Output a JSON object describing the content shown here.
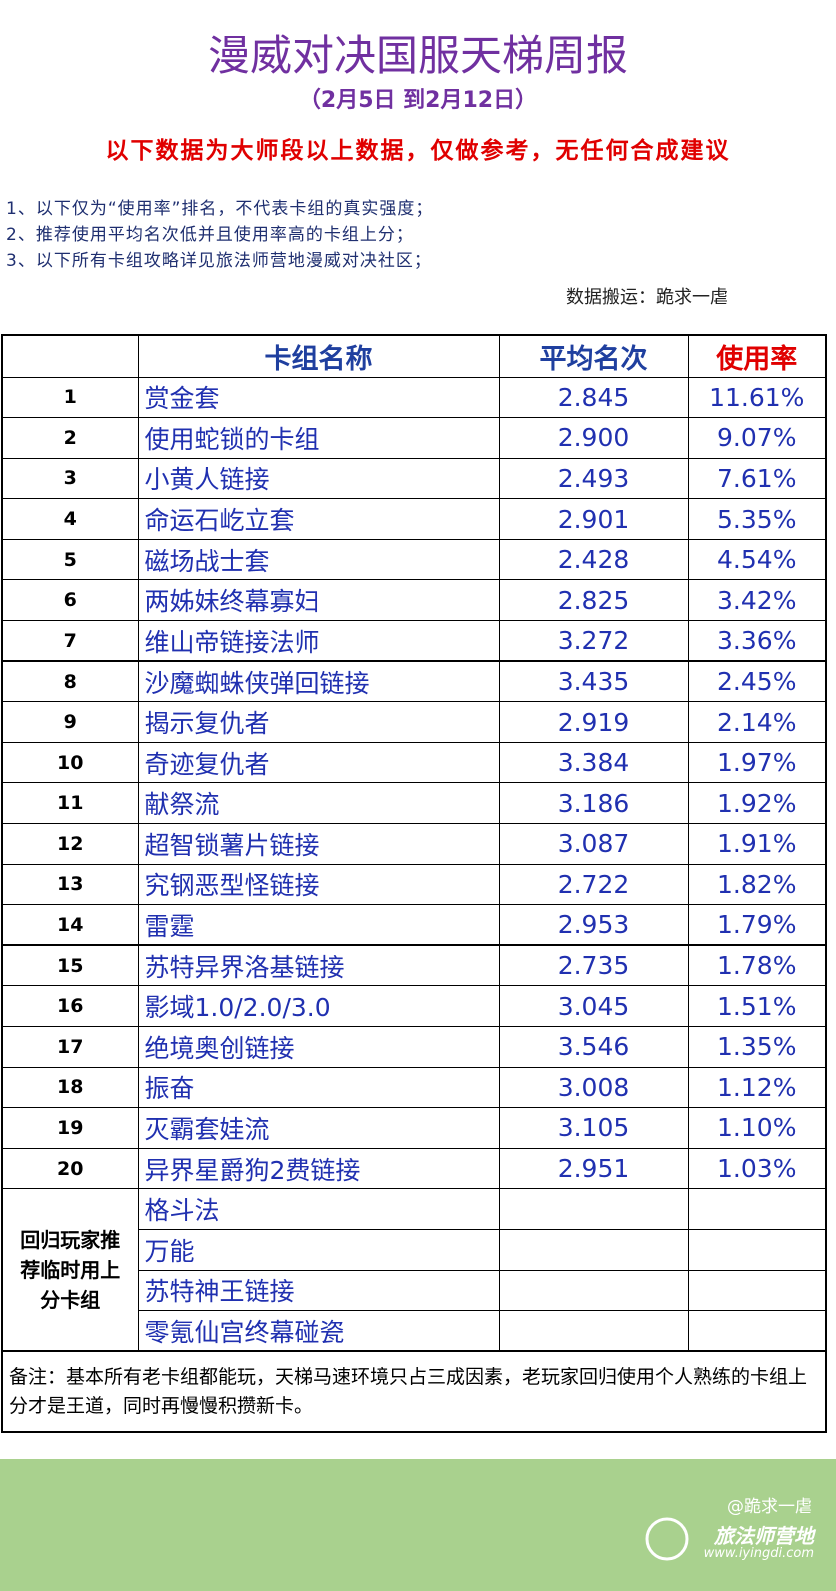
{
  "header": {
    "title": "漫威对决国服天梯周报",
    "subtitle": "（2月5日 到2月12日）",
    "disclaimer": "以下数据为大师段以上数据，仅做参考，无任何合成建议",
    "notes": [
      "1、以下仅为“使用率”排名，不代表卡组的真实强度；",
      "2、推荐使用平均名次低并且使用率高的卡组上分；",
      "3、以下所有卡组攻略详见旅法师营地漫威对决社区；"
    ],
    "source": "数据搬运：跪求一虐"
  },
  "table": {
    "columns": [
      "卡组名称",
      "平均名次",
      "使用率"
    ],
    "rows": [
      [
        "1",
        "赏金套",
        "2.845",
        "11.61%"
      ],
      [
        "2",
        "使用蛇锁的卡组",
        "2.900",
        "9.07%"
      ],
      [
        "3",
        "小黄人链接",
        "2.493",
        "7.61%"
      ],
      [
        "4",
        "命运石屹立套",
        "2.901",
        "5.35%"
      ],
      [
        "5",
        "磁场战士套",
        "2.428",
        "4.54%"
      ],
      [
        "6",
        "两姊妹终幕寡妇",
        "2.825",
        "3.42%"
      ],
      [
        "7",
        "维山帝链接法师",
        "3.272",
        "3.36%"
      ],
      [
        "8",
        "沙魔蜘蛛侠弹回链接",
        "3.435",
        "2.45%"
      ],
      [
        "9",
        "揭示复仇者",
        "2.919",
        "2.14%"
      ],
      [
        "10",
        "奇迹复仇者",
        "3.384",
        "1.97%"
      ],
      [
        "11",
        "献祭流",
        "3.186",
        "1.92%"
      ],
      [
        "12",
        "超智锁薯片链接",
        "3.087",
        "1.91%"
      ],
      [
        "13",
        "究钢恶型怪链接",
        "2.722",
        "1.82%"
      ],
      [
        "14",
        "雷霆",
        "2.953",
        "1.79%"
      ],
      [
        "15",
        "苏特异界洛基链接",
        "2.735",
        "1.78%"
      ],
      [
        "16",
        "影域1.0/2.0/3.0",
        "3.045",
        "1.51%"
      ],
      [
        "17",
        "绝境奥创链接",
        "3.546",
        "1.35%"
      ],
      [
        "18",
        "振奋",
        "3.008",
        "1.12%"
      ],
      [
        "19",
        "灭霸套娃流",
        "3.105",
        "1.10%"
      ],
      [
        "20",
        "异界星爵狗2费链接",
        "2.951",
        "1.03%"
      ]
    ],
    "return_label": "回归玩家推荐临时用上分卡组",
    "return_decks": [
      "格斗法",
      "万能",
      "苏特神王链接",
      "零氪仙宫终幕碰瓷"
    ],
    "remark": "备注：基本所有老卡组都能玩，天梯马速环境只占三成因素，老玩家回归使用个人熟练的卡组上分才是王道，同时再慢慢积攒新卡。"
  },
  "footer": {
    "watermark": "@跪求一虐",
    "brand": "旅法师营地",
    "url": "www.iyingdi.com"
  }
}
